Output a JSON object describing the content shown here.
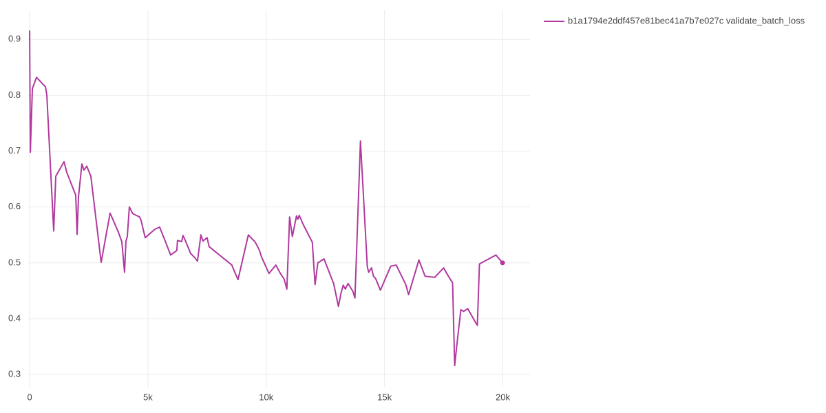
{
  "chart_data": {
    "type": "line",
    "x": [
      0,
      29,
      116,
      291,
      669,
      727,
      1017,
      1105,
      1454,
      1570,
      1948,
      2006,
      2064,
      2209,
      2297,
      2413,
      2587,
      3023,
      3401,
      3750,
      3895,
      4012,
      4070,
      4128,
      4215,
      4361,
      4506,
      4651,
      4709,
      4884,
      5291,
      5494,
      5785,
      5959,
      6221,
      6250,
      6424,
      6483,
      6570,
      6802,
      7006,
      7093,
      7238,
      7326,
      7500,
      7587,
      8547,
      8663,
      8808,
      9244,
      9535,
      9709,
      9797,
      10116,
      10407,
      10611,
      10756,
      10872,
      10988,
      11105,
      11279,
      11337,
      11395,
      11569,
      11947,
      12064,
      12180,
      12442,
      12849,
      13052,
      13168,
      13256,
      13343,
      13459,
      13663,
      13750,
      13983,
      14273,
      14331,
      14448,
      14535,
      14622,
      14826,
      15262,
      15494,
      15901,
      16017,
      16453,
      16715,
      17122,
      17500,
      17616,
      17878,
      17965,
      18081,
      18227,
      18343,
      18517,
      18866,
      18924,
      19012,
      19709,
      19990
    ],
    "series": [
      {
        "name": "b1a1794e2ddf457e81bec41a7b7e027c validate_batch_loss",
        "color": "#b0389e",
        "values": [
          0.916,
          0.698,
          0.812,
          0.832,
          0.815,
          0.8,
          0.557,
          0.655,
          0.681,
          0.662,
          0.621,
          0.551,
          0.618,
          0.677,
          0.666,
          0.673,
          0.655,
          0.501,
          0.589,
          0.555,
          0.538,
          0.483,
          0.539,
          0.547,
          0.6,
          0.588,
          0.585,
          0.582,
          0.576,
          0.545,
          0.56,
          0.564,
          0.533,
          0.514,
          0.522,
          0.54,
          0.538,
          0.549,
          0.541,
          0.517,
          0.508,
          0.503,
          0.55,
          0.539,
          0.545,
          0.529,
          0.496,
          0.484,
          0.47,
          0.55,
          0.537,
          0.523,
          0.511,
          0.481,
          0.496,
          0.48,
          0.471,
          0.453,
          0.582,
          0.547,
          0.584,
          0.578,
          0.585,
          0.568,
          0.537,
          0.461,
          0.5,
          0.507,
          0.463,
          0.422,
          0.447,
          0.46,
          0.453,
          0.463,
          0.449,
          0.437,
          0.718,
          0.493,
          0.483,
          0.491,
          0.476,
          0.472,
          0.451,
          0.494,
          0.496,
          0.461,
          0.443,
          0.505,
          0.476,
          0.474,
          0.491,
          0.482,
          0.464,
          0.316,
          0.362,
          0.416,
          0.413,
          0.418,
          0.392,
          0.388,
          0.498,
          0.514,
          0.5
        ]
      }
    ],
    "xlim": [
      -60,
      21150
    ],
    "ylim": [
      0.278,
      0.952
    ],
    "xticks": [
      0,
      {
        "value": 5000,
        "label": "5k"
      },
      {
        "value": 10000,
        "label": "10k"
      },
      {
        "value": 15000,
        "label": "15k"
      },
      {
        "value": 20000,
        "label": "20k"
      }
    ],
    "yticks": [
      0.3,
      0.4,
      0.5,
      0.6,
      0.7,
      0.8,
      0.9
    ],
    "grid": true,
    "legend": "top-right"
  }
}
